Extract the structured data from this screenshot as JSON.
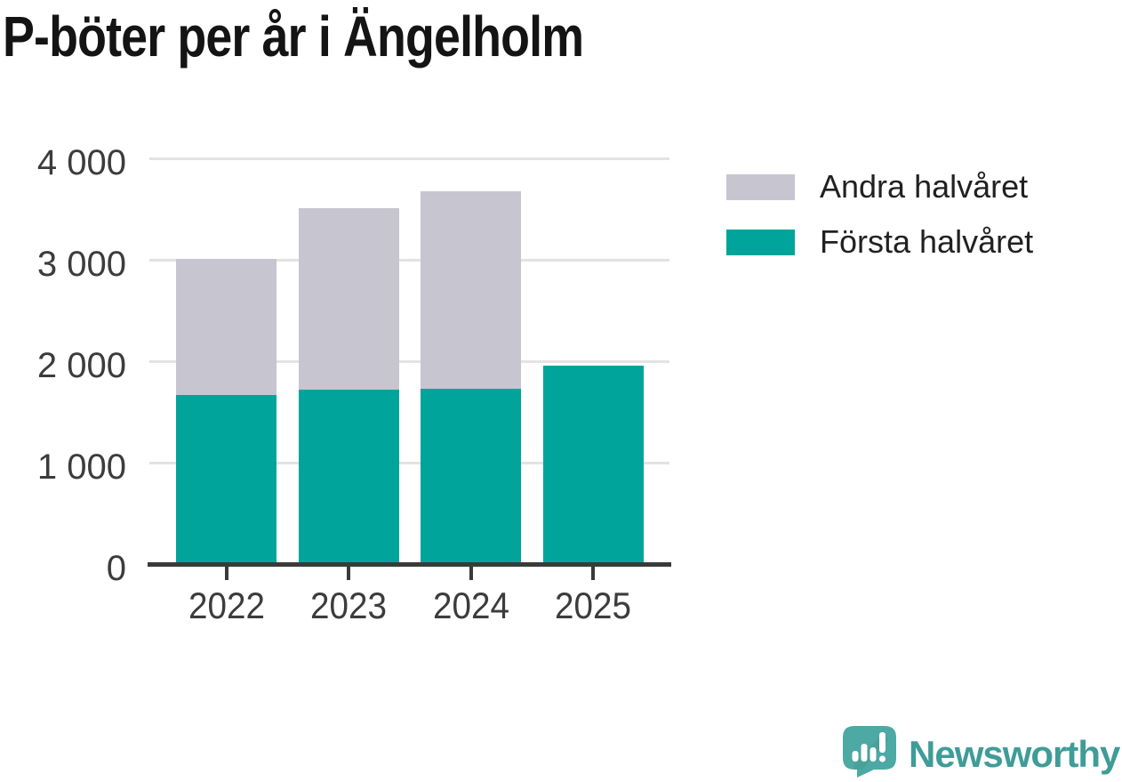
{
  "title": "P-böter per år i Ängelholm",
  "chart_data": {
    "type": "bar",
    "stacked": true,
    "title": "P-böter per år i Ängelholm",
    "categories": [
      "2022",
      "2023",
      "2024",
      "2025"
    ],
    "series": [
      {
        "name": "Första halvåret",
        "color": "#00a49b",
        "values": [
          1660,
          1710,
          1720,
          1950
        ]
      },
      {
        "name": "Andra halvåret",
        "color": "#c7c5cf",
        "values": [
          1340,
          1790,
          1950,
          0
        ]
      }
    ],
    "xlabel": "",
    "ylabel": "",
    "ylim": [
      0,
      4000
    ],
    "yticks": [
      0,
      1000,
      2000,
      3000,
      4000
    ],
    "ytick_labels": [
      "0",
      "1 000",
      "2 000",
      "3 000",
      "4 000"
    ],
    "grid": "horizontal",
    "legend_position": "right-top"
  },
  "legend": {
    "items": [
      {
        "label": "Andra halvåret",
        "color": "#c7c5cf"
      },
      {
        "label": "Första halvåret",
        "color": "#00a49b"
      }
    ]
  },
  "colors": {
    "first_half": "#00a49b",
    "second_half": "#c7c5cf",
    "gridline": "#e3e3e3",
    "axis": "#3a3a3a",
    "tick_label": "#3c3c3c",
    "brand_teal": "#3f9c98"
  },
  "branding": {
    "logo_text": "Newsworthy"
  }
}
